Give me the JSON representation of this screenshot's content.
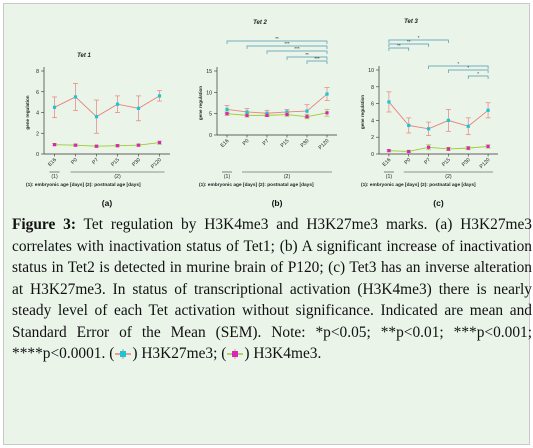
{
  "panels": [
    {
      "id": "a",
      "title": "Tet 1",
      "panel_letter": "(a)",
      "ylabel": "gene regulation",
      "yticks": [
        "0",
        "2",
        "4",
        "6",
        "8"
      ],
      "xticks": [
        "E16",
        "P0",
        "P7",
        "P15",
        "P30",
        "P120"
      ],
      "group_labels": [
        "(1)",
        "(2)"
      ],
      "footnote": "(1): embryonic age [days]  (2): postnatal age [days]",
      "significance": []
    },
    {
      "id": "b",
      "title": "Tet 2",
      "panel_letter": "(b)",
      "ylabel": "gene regulation",
      "yticks": [
        "0",
        "5",
        "10",
        "15"
      ],
      "xticks": [
        "E16",
        "P0",
        "P7",
        "P15",
        "P30",
        "P120"
      ],
      "group_labels": [
        "(1)",
        "(2)"
      ],
      "footnote": "(1): embryonic age [days]  (2): postnatal age [days]",
      "significance": [
        "**",
        "***",
        "***",
        "**",
        "***"
      ]
    },
    {
      "id": "c",
      "title": "Tet 3",
      "panel_letter": "(c)",
      "ylabel": "gene regulation",
      "yticks": [
        "0",
        "2",
        "4",
        "6",
        "8",
        "10"
      ],
      "xticks": [
        "E16",
        "P0",
        "P7",
        "P15",
        "P30",
        "P120"
      ],
      "group_labels": [
        "(1)",
        "(2)"
      ],
      "footnote": "(1): embryonic age [days]  (2): postnatal age [days]",
      "significance": [
        "**",
        "**",
        "*",
        "*",
        "*",
        "*"
      ]
    }
  ],
  "caption": {
    "label": "Figure 3:",
    "text": " Tet regulation by H3K4me3 and H3K27me3 marks. (a) H3K27me3 correlates with inactivation status of Tet1; (b) A significant increase of inactivation status in Tet2 is detected in murine brain of P120; (c) Tet3 has an inverse alteration at H3K27me3. In status of transcriptional activation (H3K4me3) there is nearly steady level of each Tet activation without significance. Indicated are mean and Standard Error of the Mean (SEM). Note: *p<0.05; **p<0.01; ***p<0.001; ****p<0.0001.",
    "legend_open": "(",
    "legend_k27": ") H3K27me3; (",
    "legend_k4": ") H3K4me3."
  },
  "colors": {
    "background": "#eaf4e9",
    "h3k27me3": "#e8807c",
    "h3k27me3_marker": "#19c6d6",
    "h3k4me3": "#9acd32",
    "h3k4me3_marker": "#e020c0",
    "bracket": "#4a9ab2"
  },
  "chart_data": [
    {
      "type": "line",
      "panel": "a",
      "title": "Tet 1",
      "ylabel": "gene regulation",
      "categories": [
        "E16",
        "P0",
        "P7",
        "P15",
        "P30",
        "P120"
      ],
      "ylim": [
        0,
        8
      ],
      "series": [
        {
          "name": "H3K27me3",
          "values": [
            4.5,
            5.5,
            3.6,
            4.8,
            4.4,
            5.6
          ],
          "errors": [
            1.0,
            1.3,
            1.6,
            0.8,
            1.2,
            0.5
          ]
        },
        {
          "name": "H3K4me3",
          "values": [
            0.9,
            0.85,
            0.75,
            0.8,
            0.85,
            1.1
          ],
          "errors": [
            0.1,
            0.1,
            0.1,
            0.1,
            0.1,
            0.15
          ]
        }
      ]
    },
    {
      "type": "line",
      "panel": "b",
      "title": "Tet 2",
      "ylabel": "gene regulation",
      "categories": [
        "E16",
        "P0",
        "P7",
        "P15",
        "P30",
        "P120"
      ],
      "ylim": [
        0,
        15
      ],
      "series": [
        {
          "name": "H3K27me3",
          "values": [
            6.0,
            5.4,
            5.1,
            5.4,
            5.6,
            9.6
          ],
          "errors": [
            0.9,
            0.8,
            0.7,
            0.6,
            1.5,
            1.5
          ]
        },
        {
          "name": "H3K4me3",
          "values": [
            5.0,
            4.6,
            4.6,
            4.8,
            4.3,
            5.2
          ],
          "errors": [
            0.4,
            0.4,
            0.3,
            0.4,
            0.5,
            0.8
          ]
        }
      ]
    },
    {
      "type": "line",
      "panel": "c",
      "title": "Tet 3",
      "ylabel": "gene regulation",
      "categories": [
        "E16",
        "P0",
        "P7",
        "P15",
        "P30",
        "P120"
      ],
      "ylim": [
        0,
        10
      ],
      "series": [
        {
          "name": "H3K27me3",
          "values": [
            6.2,
            3.4,
            3.0,
            4.0,
            3.3,
            5.2
          ],
          "errors": [
            1.2,
            0.9,
            0.8,
            1.3,
            1.0,
            0.9
          ]
        },
        {
          "name": "H3K4me3",
          "values": [
            0.4,
            0.3,
            0.8,
            0.6,
            0.7,
            0.9
          ],
          "errors": [
            0.1,
            0.1,
            0.3,
            0.2,
            0.2,
            0.2
          ]
        }
      ]
    }
  ]
}
